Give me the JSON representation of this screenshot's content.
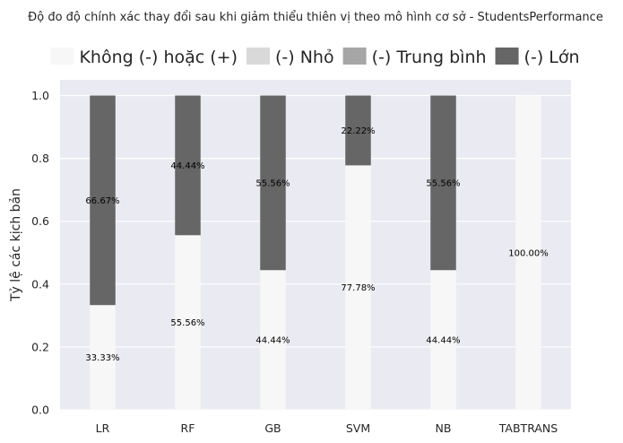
{
  "chart_data": {
    "type": "bar",
    "stacked": true,
    "title": "Độ đo độ chính xác thay đổi sau khi giảm thiểu thiên vị theo mô hình cơ sở - StudentsPerformance",
    "xlabel": "",
    "ylabel": "Tỷ lệ các kịch bản",
    "ylim": [
      0,
      1.05
    ],
    "yticks": [
      "0.0",
      "0.2",
      "0.4",
      "0.6",
      "0.8",
      "1.0"
    ],
    "grid": true,
    "legend_position": "top",
    "categories": [
      "LR",
      "RF",
      "GB",
      "SVM",
      "NB",
      "TABTRANS"
    ],
    "series": [
      {
        "name": "Không (-) hoặc (+)",
        "color": "#f7f7f7",
        "values": [
          0.3333,
          0.5556,
          0.4444,
          0.7778,
          0.4444,
          1.0
        ],
        "labels": [
          "33.33%",
          "55.56%",
          "44.44%",
          "77.78%",
          "44.44%",
          "100.00%"
        ]
      },
      {
        "name": "(-) Nhỏ",
        "color": "#d9d9d9",
        "values": [
          0,
          0,
          0,
          0,
          0,
          0
        ],
        "labels": [
          "",
          "",
          "",
          "",
          "",
          ""
        ]
      },
      {
        "name": "(-) Trung bình",
        "color": "#a6a6a6",
        "values": [
          0,
          0,
          0,
          0,
          0,
          0
        ],
        "labels": [
          "",
          "",
          "",
          "",
          "",
          ""
        ]
      },
      {
        "name": "(-) Lớn",
        "color": "#666666",
        "values": [
          0.6667,
          0.4444,
          0.5556,
          0.2222,
          0.5556,
          0
        ],
        "labels": [
          "66.67%",
          "44.44%",
          "55.56%",
          "22.22%",
          "55.56%",
          ""
        ]
      }
    ],
    "colors": {
      "plot_background": "#eaeaf2",
      "grid": "#ffffff",
      "text": "#262626"
    }
  }
}
